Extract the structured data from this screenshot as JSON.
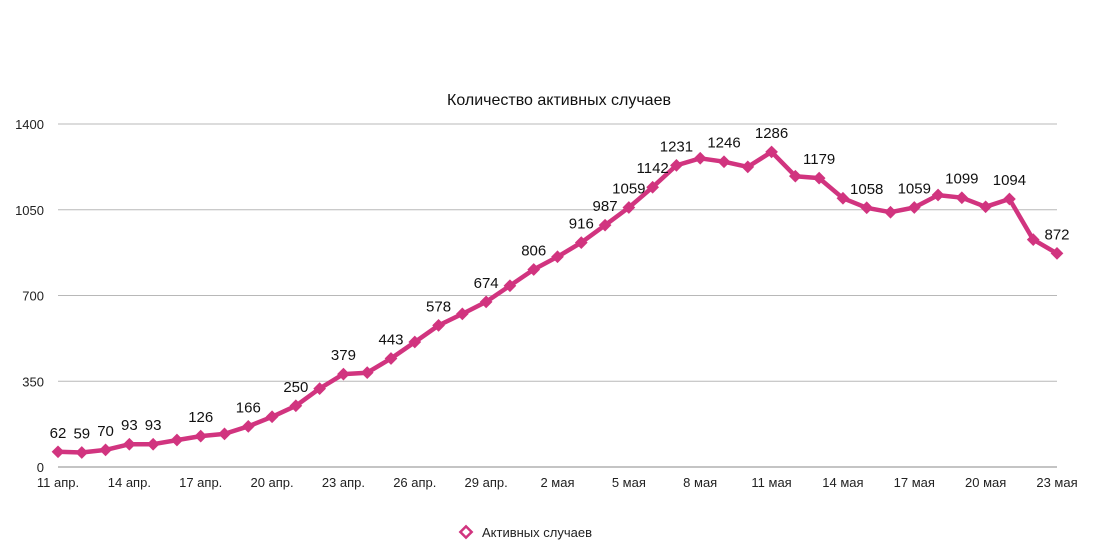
{
  "chart_data": {
    "type": "line",
    "title": "Количество активных случаев",
    "xlabel": "",
    "ylabel": "",
    "ylim": [
      0,
      1400
    ],
    "yticks": [
      0,
      350,
      700,
      1050,
      1400
    ],
    "grid": true,
    "legend": "bottom",
    "x": [
      "11 апр.",
      "12 апр.",
      "13 апр.",
      "14 апр.",
      "15 апр.",
      "16 апр.",
      "17 апр.",
      "18 апр.",
      "19 апр.",
      "20 апр.",
      "21 апр.",
      "22 апр.",
      "23 апр.",
      "24 апр.",
      "25 апр.",
      "26 апр.",
      "27 апр.",
      "28 апр.",
      "29 апр.",
      "30 апр.",
      "1 мая",
      "2 мая",
      "3 мая",
      "4 мая",
      "5 мая",
      "6 мая",
      "7 мая",
      "8 мая",
      "9 мая",
      "10 мая",
      "11 мая",
      "12 мая",
      "13 мая",
      "14 мая",
      "15 мая",
      "16 мая",
      "17 мая",
      "18 мая",
      "19 мая",
      "20 мая",
      "21 мая",
      "22 мая",
      "23 мая"
    ],
    "xtick_labels": [
      "11 апр.",
      "14 апр.",
      "17 апр.",
      "20 апр.",
      "23 апр.",
      "26 апр.",
      "29 апр.",
      "2 мая",
      "5 мая",
      "8 мая",
      "11 мая",
      "14 мая",
      "17 мая",
      "20 мая",
      "23 мая"
    ],
    "series": [
      {
        "name": "Активных случаев",
        "color": "#d1347f",
        "values": [
          62,
          59,
          70,
          93,
          93,
          110,
          126,
          135,
          166,
          205,
          250,
          320,
          379,
          385,
          443,
          510,
          578,
          625,
          674,
          740,
          806,
          858,
          916,
          987,
          1059,
          1142,
          1231,
          1260,
          1246,
          1225,
          1286,
          1187,
          1179,
          1097,
          1058,
          1040,
          1059,
          1110,
          1099,
          1062,
          1094,
          928,
          872
        ],
        "labels": [
          "62",
          "59",
          "70",
          "93",
          "93",
          "",
          "126",
          "",
          "166",
          "",
          "250",
          "",
          "379",
          "",
          "443",
          "",
          "578",
          "",
          "674",
          "",
          "806",
          "",
          "916",
          "987",
          "1059",
          "1142",
          "1231",
          "",
          "1246",
          "",
          "1286",
          "",
          "1179",
          "",
          "1058",
          "",
          "1059",
          "",
          "1099",
          "",
          "1094",
          "",
          "872"
        ]
      }
    ]
  }
}
